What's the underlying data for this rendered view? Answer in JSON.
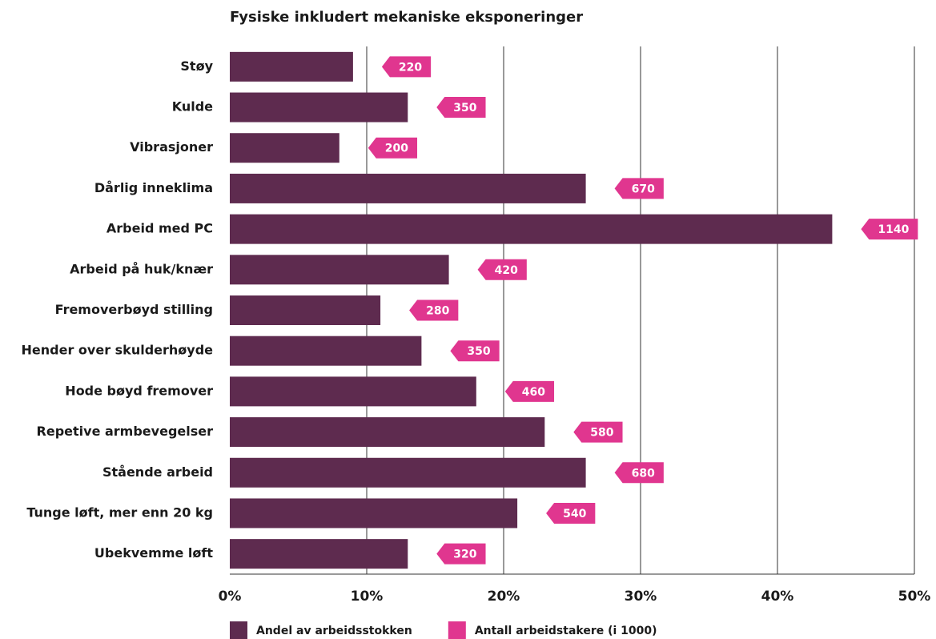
{
  "chart_data": {
    "type": "bar",
    "orientation": "horizontal",
    "title": "Fysiske inkludert mekaniske eksponeringer",
    "categories": [
      "Støy",
      "Kulde",
      "Vibrasjoner",
      "Dårlig inneklima",
      "Arbeid med PC",
      "Arbeid på huk/knær",
      "Fremoverbøyd stilling",
      "Hender over skulderhøyde",
      "Hode bøyd fremover",
      "Repetive armbevegelser",
      "Stående arbeid",
      "Tunge løft, mer enn 20 kg",
      "Ubekvemme løft"
    ],
    "series": [
      {
        "name": "Andel av arbeidsstokken",
        "color": "#5e2b4f",
        "values": [
          9,
          13,
          8,
          26,
          44,
          16,
          11,
          14,
          18,
          23,
          26,
          21,
          13
        ]
      },
      {
        "name": "Antall arbeidstakere (i 1000)",
        "color": "#e0368f",
        "values": [
          220,
          350,
          200,
          670,
          1140,
          420,
          280,
          350,
          460,
          580,
          680,
          540,
          320
        ]
      }
    ],
    "xlim": [
      0,
      50
    ],
    "xticks": [
      {
        "value": 0,
        "label": "0%"
      },
      {
        "value": 10,
        "label": "10%"
      },
      {
        "value": 20,
        "label": "20%"
      },
      {
        "value": 30,
        "label": "30%"
      },
      {
        "value": 40,
        "label": "40%"
      },
      {
        "value": 50,
        "label": "50%"
      }
    ],
    "grid": true
  }
}
